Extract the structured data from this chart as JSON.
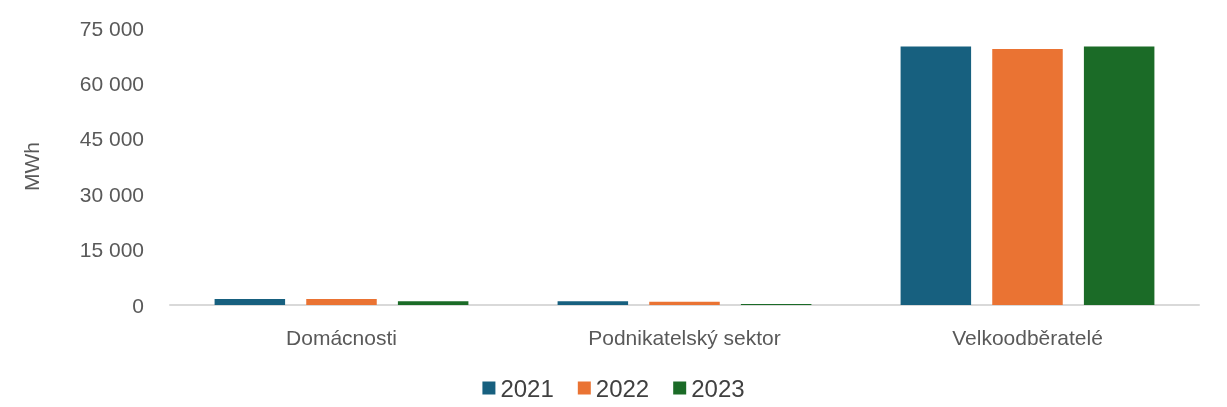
{
  "chart_data": {
    "type": "bar",
    "ylabel": "MWh",
    "categories": [
      "Domácnosti",
      "Podnikatelský sektor",
      "Velkoodběratelé"
    ],
    "series": [
      {
        "name": "2021",
        "color": "#17607f",
        "values": [
          1600,
          1000,
          70000
        ]
      },
      {
        "name": "2022",
        "color": "#ea7333",
        "values": [
          1600,
          900,
          69300
        ]
      },
      {
        "name": "2023",
        "color": "#1b6b27",
        "values": [
          1000,
          300,
          70000
        ]
      }
    ],
    "ylim": [
      0,
      75000
    ],
    "yticks": [
      {
        "value": 0,
        "label": "0"
      },
      {
        "value": 15000,
        "label": "15 000"
      },
      {
        "value": 30000,
        "label": "30 000"
      },
      {
        "value": 45000,
        "label": "45 000"
      },
      {
        "value": 60000,
        "label": "60 000"
      },
      {
        "value": 75000,
        "label": "75 000"
      }
    ],
    "grid": false,
    "legend": "bottom"
  }
}
